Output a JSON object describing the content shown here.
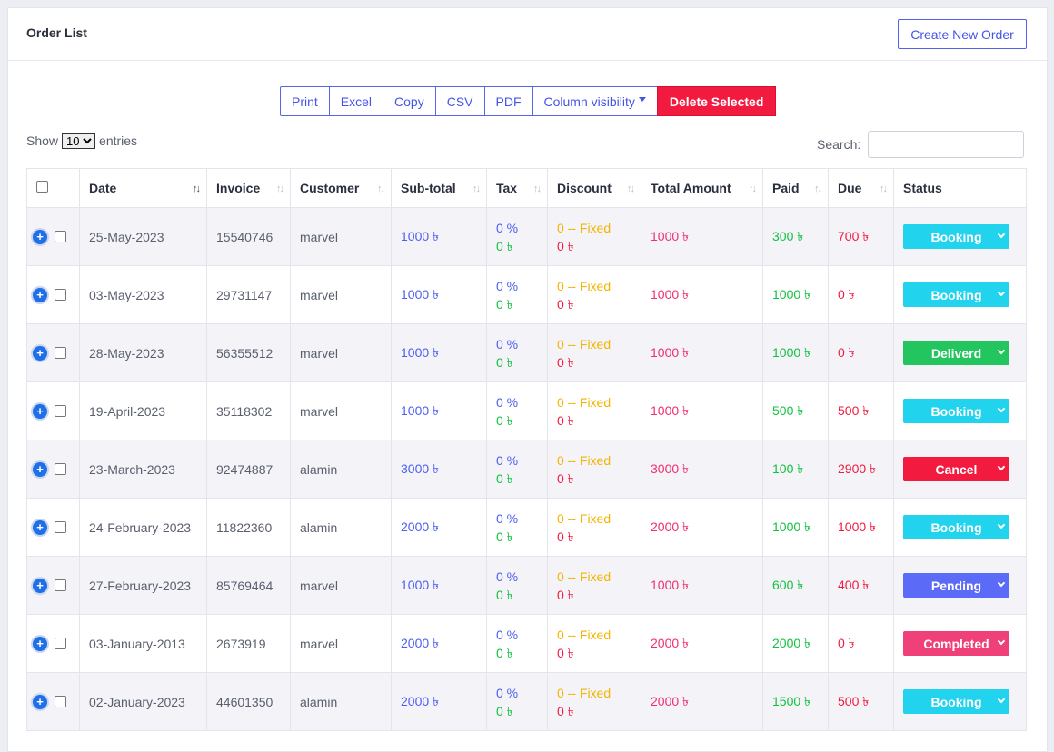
{
  "header": {
    "title": "Order List",
    "create_button": "Create New Order"
  },
  "toolbar": {
    "buttons": [
      "Print",
      "Excel",
      "Copy",
      "CSV",
      "PDF",
      "Column visibility"
    ],
    "delete_label": "Delete Selected"
  },
  "length": {
    "show": "Show",
    "selected": "10",
    "entries": "entries"
  },
  "search": {
    "label": "Search:",
    "value": ""
  },
  "table": {
    "columns": [
      "Date",
      "Invoice",
      "Customer",
      "Sub-total",
      "Tax",
      "Discount",
      "Total Amount",
      "Paid",
      "Due",
      "Status"
    ],
    "rows": [
      {
        "date": "25-May-2023",
        "invoice": "15540746",
        "customer": "marvel",
        "subtotal": "1000 ৳",
        "tax_pct": "0 %",
        "tax_amt": "0 ৳",
        "disc_type": "0 -- Fixed",
        "disc_amt": "0 ৳",
        "total": "1000 ৳",
        "paid": "300 ৳",
        "due": "700 ৳",
        "status": "Booking",
        "status_color": "#22d3ee"
      },
      {
        "date": "03-May-2023",
        "invoice": "29731147",
        "customer": "marvel",
        "subtotal": "1000 ৳",
        "tax_pct": "0 %",
        "tax_amt": "0 ৳",
        "disc_type": "0 -- Fixed",
        "disc_amt": "0 ৳",
        "total": "1000 ৳",
        "paid": "1000 ৳",
        "due": "0 ৳",
        "status": "Booking",
        "status_color": "#22d3ee"
      },
      {
        "date": "28-May-2023",
        "invoice": "56355512",
        "customer": "marvel",
        "subtotal": "1000 ৳",
        "tax_pct": "0 %",
        "tax_amt": "0 ৳",
        "disc_type": "0 -- Fixed",
        "disc_amt": "0 ৳",
        "total": "1000 ৳",
        "paid": "1000 ৳",
        "due": "0 ৳",
        "status": "Deliverd",
        "status_color": "#22c55e"
      },
      {
        "date": "19-April-2023",
        "invoice": "35118302",
        "customer": "marvel",
        "subtotal": "1000 ৳",
        "tax_pct": "0 %",
        "tax_amt": "0 ৳",
        "disc_type": "0 -- Fixed",
        "disc_amt": "0 ৳",
        "total": "1000 ৳",
        "paid": "500 ৳",
        "due": "500 ৳",
        "status": "Booking",
        "status_color": "#22d3ee"
      },
      {
        "date": "23-March-2023",
        "invoice": "92474887",
        "customer": "alamin",
        "subtotal": "3000 ৳",
        "tax_pct": "0 %",
        "tax_amt": "0 ৳",
        "disc_type": "0 -- Fixed",
        "disc_amt": "0 ৳",
        "total": "3000 ৳",
        "paid": "100 ৳",
        "due": "2900 ৳",
        "status": "Cancel",
        "status_color": "#f21b3f"
      },
      {
        "date": "24-February-2023",
        "invoice": "11822360",
        "customer": "alamin",
        "subtotal": "2000 ৳",
        "tax_pct": "0 %",
        "tax_amt": "0 ৳",
        "disc_type": "0 -- Fixed",
        "disc_amt": "0 ৳",
        "total": "2000 ৳",
        "paid": "1000 ৳",
        "due": "1000 ৳",
        "status": "Booking",
        "status_color": "#22d3ee"
      },
      {
        "date": "27-February-2023",
        "invoice": "85769464",
        "customer": "marvel",
        "subtotal": "1000 ৳",
        "tax_pct": "0 %",
        "tax_amt": "0 ৳",
        "disc_type": "0 -- Fixed",
        "disc_amt": "0 ৳",
        "total": "1000 ৳",
        "paid": "600 ৳",
        "due": "400 ৳",
        "status": "Pending",
        "status_color": "#5b6af7"
      },
      {
        "date": "03-January-2013",
        "invoice": "2673919",
        "customer": "marvel",
        "subtotal": "2000 ৳",
        "tax_pct": "0 %",
        "tax_amt": "0 ৳",
        "disc_type": "0 -- Fixed",
        "disc_amt": "0 ৳",
        "total": "2000 ৳",
        "paid": "2000 ৳",
        "due": "0 ৳",
        "status": "Completed",
        "status_color": "#f0407a"
      },
      {
        "date": "02-January-2023",
        "invoice": "44601350",
        "customer": "alamin",
        "subtotal": "2000 ৳",
        "tax_pct": "0 %",
        "tax_amt": "0 ৳",
        "disc_type": "0 -- Fixed",
        "disc_amt": "0 ৳",
        "total": "2000 ৳",
        "paid": "1500 ৳",
        "due": "500 ৳",
        "status": "Booking",
        "status_color": "#22d3ee"
      }
    ]
  }
}
